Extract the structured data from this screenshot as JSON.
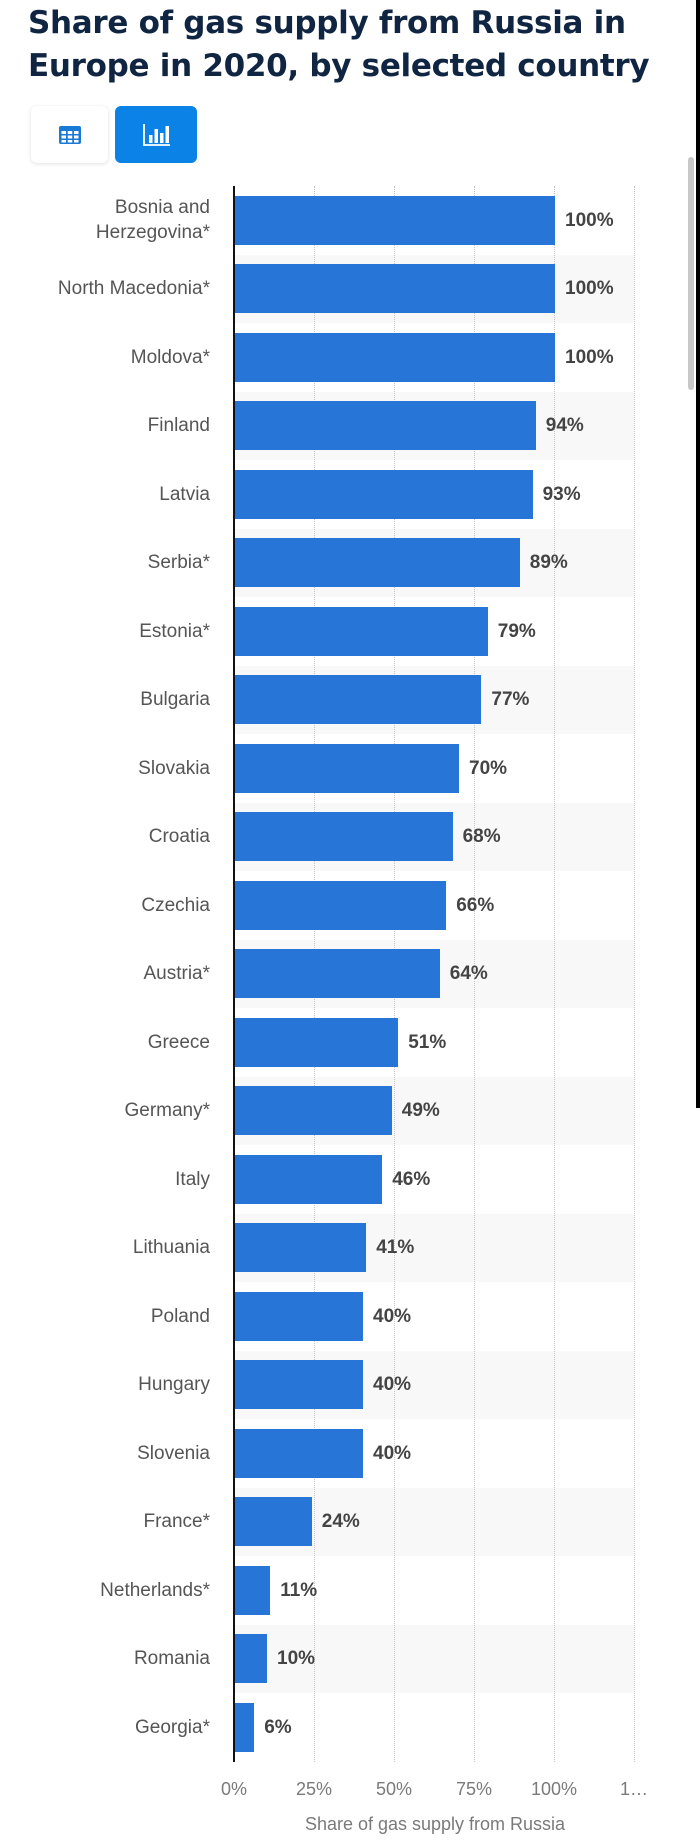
{
  "title": "Share of gas supply from Russia in Europe in 2020, by selected country",
  "view_toggle": {
    "table": {
      "icon": "table-icon",
      "active": false
    },
    "chart": {
      "icon": "bar-chart-icon",
      "active": true
    }
  },
  "colors": {
    "bar": "#2875d8",
    "title": "#0f2541",
    "toggle_active": "#0b82e6"
  },
  "chart_data": {
    "type": "bar",
    "orientation": "horizontal",
    "title": "Share of gas supply from Russia in Europe in 2020, by selected country",
    "xlabel": "Share of gas supply from Russia",
    "ylabel": "",
    "xlim": [
      0,
      125
    ],
    "x_ticks": [
      "0%",
      "25%",
      "50%",
      "75%",
      "100%",
      "1…"
    ],
    "grid": true,
    "categories": [
      "Bosnia and Herzegovina*",
      "North Macedonia*",
      "Moldova*",
      "Finland",
      "Latvia",
      "Serbia*",
      "Estonia*",
      "Bulgaria",
      "Slovakia",
      "Croatia",
      "Czechia",
      "Austria*",
      "Greece",
      "Germany*",
      "Italy",
      "Lithuania",
      "Poland",
      "Hungary",
      "Slovenia",
      "France*",
      "Netherlands*",
      "Romania",
      "Georgia*"
    ],
    "values": [
      100,
      100,
      100,
      94,
      93,
      89,
      79,
      77,
      70,
      68,
      66,
      64,
      51,
      49,
      46,
      41,
      40,
      40,
      40,
      24,
      11,
      10,
      6
    ],
    "value_labels": [
      "100%",
      "100%",
      "100%",
      "94%",
      "93%",
      "89%",
      "79%",
      "77%",
      "70%",
      "68%",
      "66%",
      "64%",
      "51%",
      "49%",
      "46%",
      "41%",
      "40%",
      "40%",
      "40%",
      "24%",
      "11%",
      "10%",
      "6%"
    ]
  }
}
